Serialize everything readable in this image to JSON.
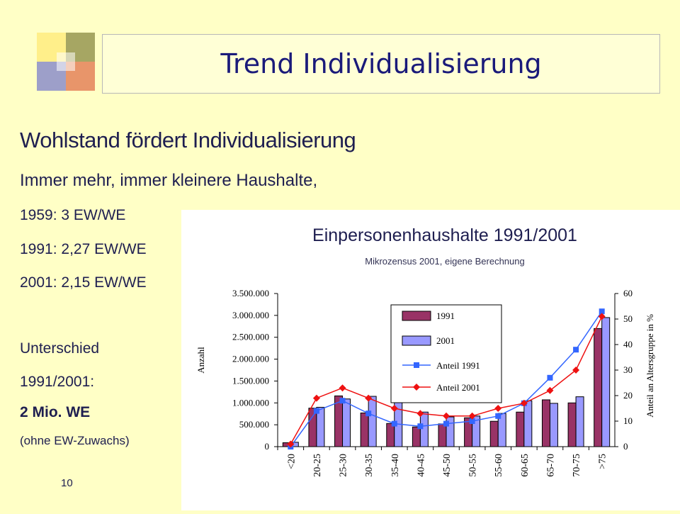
{
  "slide": {
    "title": "Trend Individualisierung",
    "heading": "Wohlstand fördert Individualisierung",
    "subheading": "Immer mehr, immer kleinere Haushalte,",
    "lines": [
      "1959: 3  EW/WE",
      "1991: 2,27 EW/WE",
      "2001: 2,15 EW/WE"
    ],
    "diff_label_1": "Unterschied",
    "diff_label_2": "1991/2001:",
    "diff_value": "2 Mio. WE",
    "diff_note": "(ohne EW-Zuwachs)",
    "page_number": "10"
  },
  "colors": {
    "background": "#ffffc6",
    "bar_1991": "#993366",
    "bar_2001": "#9999ff",
    "line_1991": "#3366ff",
    "line_2001": "#ee1111"
  },
  "chart_data": {
    "type": "bar",
    "title": "Einpersonenhaushalte 1991/2001",
    "subtitle": "Mikrozensus 2001, eigene Berechnung",
    "ylabel": "Anzahl",
    "y2label": "Anteil an Altersgruppe in %",
    "ylim": [
      0,
      3500000
    ],
    "y2lim": [
      0,
      60
    ],
    "yticks": [
      "0",
      "500.000",
      "1.000.000",
      "1.500.000",
      "2.000.000",
      "2.500.000",
      "3.000.000",
      "3.500.000"
    ],
    "y2ticks": [
      "0",
      "10",
      "20",
      "30",
      "40",
      "50",
      "60"
    ],
    "categories": [
      "<20",
      "20-25",
      "25-30",
      "30-35",
      "35-40",
      "40-45",
      "45-50",
      "50-55",
      "55-60",
      "60-65",
      "65-70",
      "70-75",
      ">75"
    ],
    "series": [
      {
        "name": "1991",
        "kind": "bar",
        "axis": "left",
        "values": [
          90000,
          880000,
          1160000,
          770000,
          530000,
          450000,
          520000,
          660000,
          580000,
          790000,
          1070000,
          1000000,
          2700000
        ]
      },
      {
        "name": "2001",
        "kind": "bar",
        "axis": "left",
        "values": [
          100000,
          900000,
          1090000,
          1150000,
          1040000,
          790000,
          680000,
          700000,
          760000,
          1050000,
          990000,
          1140000,
          2950000
        ]
      },
      {
        "name": "Anteil 1991",
        "kind": "line",
        "axis": "right",
        "values": [
          0,
          14,
          18,
          13,
          9,
          8,
          9,
          10,
          12,
          17,
          27,
          38,
          53
        ]
      },
      {
        "name": "Anteil 2001",
        "kind": "line",
        "axis": "right",
        "values": [
          1,
          19,
          23,
          19,
          15,
          13,
          12,
          12,
          15,
          17,
          22,
          30,
          51
        ]
      }
    ],
    "legend": "top-right",
    "grid": false
  }
}
